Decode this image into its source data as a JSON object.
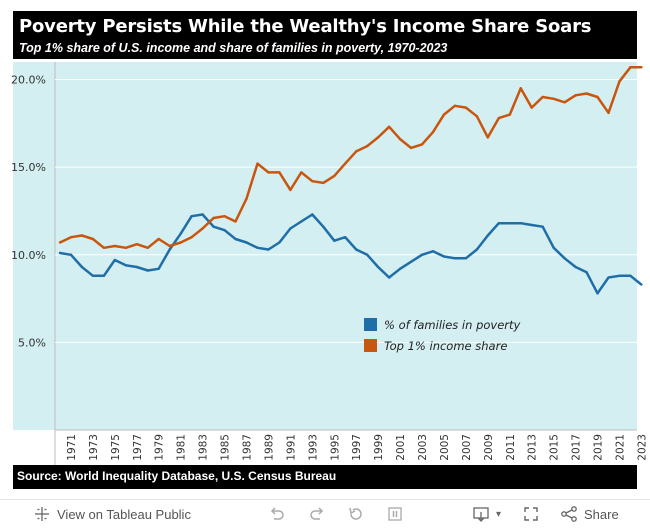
{
  "header": {
    "title": "Poverty Persists While the Wealthy's Income Share Soars",
    "subtitle": "Top 1% share of U.S. income and share of families in poverty, 1970-2023"
  },
  "chart_data": {
    "type": "line",
    "title": "Poverty Persists While the Wealthy's Income Share Soars",
    "subtitle": "Top 1% share of U.S. income and share of families in poverty, 1970-2023",
    "xlabel": "",
    "ylabel": "",
    "ylim": [
      0,
      21
    ],
    "xlim": [
      1970,
      2023
    ],
    "y_ticks": [
      "5.0%",
      "10.0%",
      "15.0%",
      "20.0%"
    ],
    "y_tick_values": [
      5,
      10,
      15,
      20
    ],
    "x_ticks": [
      1971,
      1973,
      1975,
      1977,
      1979,
      1981,
      1983,
      1985,
      1987,
      1989,
      1991,
      1993,
      1995,
      1997,
      1999,
      2001,
      2003,
      2005,
      2007,
      2009,
      2011,
      2013,
      2015,
      2017,
      2019,
      2021,
      2023
    ],
    "grid": "horizontal",
    "legend_position": "center-right",
    "background": "#d4eff1",
    "x": [
      1970,
      1971,
      1972,
      1973,
      1974,
      1975,
      1976,
      1977,
      1978,
      1979,
      1980,
      1981,
      1982,
      1983,
      1984,
      1985,
      1986,
      1987,
      1988,
      1989,
      1990,
      1991,
      1992,
      1993,
      1994,
      1995,
      1996,
      1997,
      1998,
      1999,
      2000,
      2001,
      2002,
      2003,
      2004,
      2005,
      2006,
      2007,
      2008,
      2009,
      2010,
      2011,
      2012,
      2013,
      2014,
      2015,
      2016,
      2017,
      2018,
      2019,
      2020,
      2021,
      2022,
      2023
    ],
    "series": [
      {
        "name": "% of families in poverty",
        "color": "#1f6ea8",
        "values": [
          10.1,
          10.0,
          9.3,
          8.8,
          8.8,
          9.7,
          9.4,
          9.3,
          9.1,
          9.2,
          10.3,
          11.2,
          12.2,
          12.3,
          11.6,
          11.4,
          10.9,
          10.7,
          10.4,
          10.3,
          10.7,
          11.5,
          11.9,
          12.3,
          11.6,
          10.8,
          11.0,
          10.3,
          10.0,
          9.3,
          8.7,
          9.2,
          9.6,
          10.0,
          10.2,
          9.9,
          9.8,
          9.8,
          10.3,
          11.1,
          11.8,
          11.8,
          11.8,
          11.7,
          11.6,
          10.4,
          9.8,
          9.3,
          9.0,
          7.8,
          8.7,
          8.8,
          8.8,
          8.3
        ]
      },
      {
        "name": "Top 1% income share",
        "color": "#c8560e",
        "values": [
          10.7,
          11.0,
          11.1,
          10.9,
          10.4,
          10.5,
          10.4,
          10.6,
          10.4,
          10.9,
          10.5,
          10.7,
          11.0,
          11.5,
          12.1,
          12.2,
          11.9,
          13.2,
          15.2,
          14.7,
          14.7,
          13.7,
          14.7,
          14.2,
          14.1,
          14.5,
          15.2,
          15.9,
          16.2,
          16.7,
          17.3,
          16.6,
          16.1,
          16.3,
          17.0,
          18.0,
          18.5,
          18.4,
          17.9,
          16.7,
          17.8,
          18.0,
          19.5,
          18.4,
          19.0,
          18.9,
          18.7,
          19.1,
          19.2,
          19.0,
          18.1,
          19.9,
          20.7,
          20.7
        ]
      }
    ]
  },
  "source": "Source: World Inequality Database, U.S. Census Bureau",
  "toolbar": {
    "view_label": "View on Tableau Public",
    "share_label": "Share"
  }
}
